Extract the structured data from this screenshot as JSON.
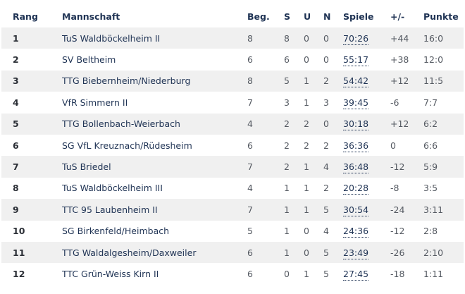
{
  "headers": {
    "rank": "Rang",
    "team": "Mannschaft",
    "played": "Beg.",
    "won": "S",
    "draw": "U",
    "lost": "N",
    "games": "Spiele",
    "diff": "+/-",
    "points": "Punkte"
  },
  "rows": [
    {
      "rank": "1",
      "team": "TuS Waldböckelheim II",
      "played": "8",
      "won": "8",
      "draw": "0",
      "lost": "0",
      "games": "70:26",
      "diff": "+44",
      "points": "16:0"
    },
    {
      "rank": "2",
      "team": "SV Beltheim",
      "played": "6",
      "won": "6",
      "draw": "0",
      "lost": "0",
      "games": "55:17",
      "diff": "+38",
      "points": "12:0"
    },
    {
      "rank": "3",
      "team": "TTG Biebernheim/Niederburg",
      "played": "8",
      "won": "5",
      "draw": "1",
      "lost": "2",
      "games": "54:42",
      "diff": "+12",
      "points": "11:5"
    },
    {
      "rank": "4",
      "team": "VfR Simmern II",
      "played": "7",
      "won": "3",
      "draw": "1",
      "lost": "3",
      "games": "39:45",
      "diff": "-6",
      "points": "7:7"
    },
    {
      "rank": "5",
      "team": "TTG Bollenbach-Weierbach",
      "played": "4",
      "won": "2",
      "draw": "2",
      "lost": "0",
      "games": "30:18",
      "diff": "+12",
      "points": "6:2"
    },
    {
      "rank": "6",
      "team": "SG VfL Kreuznach/Rüdesheim",
      "played": "6",
      "won": "2",
      "draw": "2",
      "lost": "2",
      "games": "36:36",
      "diff": "0",
      "points": "6:6"
    },
    {
      "rank": "7",
      "team": "TuS Briedel",
      "played": "7",
      "won": "2",
      "draw": "1",
      "lost": "4",
      "games": "36:48",
      "diff": "-12",
      "points": "5:9"
    },
    {
      "rank": "8",
      "team": "TuS Waldböckelheim III",
      "played": "4",
      "won": "1",
      "draw": "1",
      "lost": "2",
      "games": "20:28",
      "diff": "-8",
      "points": "3:5"
    },
    {
      "rank": "9",
      "team": "TTC 95 Laubenheim II",
      "played": "7",
      "won": "1",
      "draw": "1",
      "lost": "5",
      "games": "30:54",
      "diff": "-24",
      "points": "3:11"
    },
    {
      "rank": "10",
      "team": "SG Birkenfeld/Heimbach",
      "played": "5",
      "won": "1",
      "draw": "0",
      "lost": "4",
      "games": "24:36",
      "diff": "-12",
      "points": "2:8"
    },
    {
      "rank": "11",
      "team": "TTG Waldalgesheim/Daxweiler",
      "played": "6",
      "won": "1",
      "draw": "0",
      "lost": "5",
      "games": "23:49",
      "diff": "-26",
      "points": "2:10"
    },
    {
      "rank": "12",
      "team": "TTC Grün-Weiss Kirn II",
      "played": "6",
      "won": "0",
      "draw": "1",
      "lost": "5",
      "games": "27:45",
      "diff": "-18",
      "points": "1:11"
    }
  ]
}
